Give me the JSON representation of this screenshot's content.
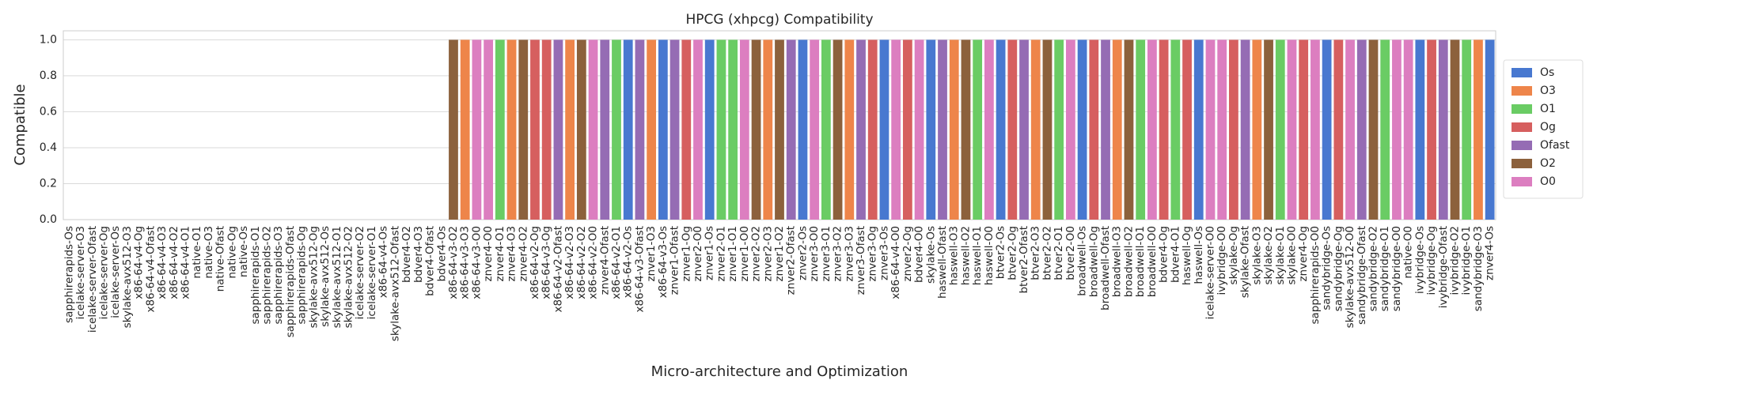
{
  "chart_data": {
    "type": "bar",
    "title": "HPCG (xhpcg) Compatibility",
    "xlabel": "Micro-architecture and Optimization",
    "ylabel": "Compatible",
    "categories": [
      "sapphirerapids-Os",
      "icelake-server-O3",
      "icelake-server-Ofast",
      "icelake-server-Og",
      "icelake-server-Os",
      "skylake-avx512-O3",
      "x86-64-v4-Og",
      "x86-64-v4-Ofast",
      "x86-64-v4-O3",
      "x86-64-v4-O2",
      "x86-64-v4-O1",
      "native-O1",
      "native-O3",
      "native-Ofast",
      "native-Og",
      "native-Os",
      "sapphirerapids-O1",
      "sapphirerapids-O2",
      "sapphirerapids-O3",
      "sapphirerapids-Ofast",
      "sapphirerapids-Og",
      "skylake-avx512-Og",
      "skylake-avx512-Os",
      "skylake-avx512-O1",
      "skylake-avx512-O2",
      "icelake-server-O2",
      "icelake-server-O1",
      "x86-64-v4-Os",
      "skylake-avx512-Ofast",
      "bdver4-O2",
      "bdver4-O3",
      "bdver4-Ofast",
      "bdver4-Os",
      "x86-64-v3-O2",
      "x86-64-v3-O3",
      "x86-64-v3-O0",
      "znver4-O0",
      "znver4-O1",
      "znver4-O3",
      "znver4-O2",
      "x86-64-v2-Og",
      "x86-64-v3-Og",
      "x86-64-v2-Ofast",
      "x86-64-v2-O3",
      "x86-64-v2-O2",
      "x86-64-v2-O0",
      "znver4-Ofast",
      "x86-64-v2-O1",
      "x86-64-v2-Os",
      "x86-64-v3-Ofast",
      "znver1-O3",
      "x86-64-v3-Os",
      "znver1-Ofast",
      "znver1-Og",
      "znver2-O0",
      "znver1-Os",
      "znver2-O1",
      "znver1-O1",
      "znver1-O0",
      "znver2-O2",
      "znver2-O3",
      "znver1-O2",
      "znver2-Ofast",
      "znver2-Os",
      "znver3-O0",
      "znver3-O1",
      "znver3-O2",
      "znver3-O3",
      "znver3-Ofast",
      "znver3-Og",
      "znver3-Os",
      "x86-64-v4-O0",
      "znver2-Og",
      "bdver4-O0",
      "skylake-Os",
      "haswell-Ofast",
      "haswell-O3",
      "haswell-O2",
      "haswell-O1",
      "haswell-O0",
      "btver2-Os",
      "btver2-Og",
      "btver2-Ofast",
      "btver2-O3",
      "btver2-O2",
      "btver2-O1",
      "btver2-O0",
      "broadwell-Os",
      "broadwell-Og",
      "broadwell-Ofast",
      "broadwell-O3",
      "broadwell-O2",
      "broadwell-O1",
      "broadwell-O0",
      "bdver4-Og",
      "bdver4-O1",
      "haswell-Og",
      "haswell-Os",
      "icelake-server-O0",
      "ivybridge-O0",
      "skylake-Og",
      "skylake-Ofast",
      "skylake-O3",
      "skylake-O2",
      "skylake-O1",
      "skylake-O0",
      "znver4-Og",
      "sapphirerapids-O0",
      "sandybridge-Os",
      "sandybridge-Og",
      "skylake-avx512-O0",
      "sandybridge-Ofast",
      "sandybridge-O2",
      "sandybridge-O1",
      "sandybridge-O0",
      "native-O0",
      "ivybridge-Os",
      "ivybridge-Og",
      "ivybridge-Ofast",
      "ivybridge-O2",
      "ivybridge-O1",
      "sandybridge-O3",
      "znver4-Os"
    ],
    "values": [
      0,
      0,
      0,
      0,
      0,
      0,
      0,
      0,
      0,
      0,
      0,
      0,
      0,
      0,
      0,
      0,
      0,
      0,
      0,
      0,
      0,
      0,
      0,
      0,
      0,
      0,
      0,
      0,
      0,
      0,
      0,
      0,
      0,
      1,
      1,
      1,
      1,
      1,
      1,
      1,
      1,
      1,
      1,
      1,
      1,
      1,
      1,
      1,
      1,
      1,
      1,
      1,
      1,
      1,
      1,
      1,
      1,
      1,
      1,
      1,
      1,
      1,
      1,
      1,
      1,
      1,
      1,
      1,
      1,
      1,
      1,
      1,
      1,
      1,
      1,
      1,
      1,
      1,
      1,
      1,
      1,
      1,
      1,
      1,
      1,
      1,
      1,
      1,
      1,
      1,
      1,
      1,
      1,
      1,
      1,
      1,
      1,
      1,
      1,
      1,
      1,
      1,
      1,
      1,
      1,
      1,
      1,
      1,
      1,
      1,
      1,
      1,
      1,
      1,
      1,
      1,
      1,
      1,
      1,
      1,
      1,
      1,
      1
    ],
    "series": [
      {
        "name": "Os",
        "color": "#4878d0"
      },
      {
        "name": "O3",
        "color": "#ee854a"
      },
      {
        "name": "O1",
        "color": "#6acc64"
      },
      {
        "name": "Og",
        "color": "#d65f5f"
      },
      {
        "name": "Ofast",
        "color": "#956cb4"
      },
      {
        "name": "O2",
        "color": "#8c613c"
      },
      {
        "name": "O0",
        "color": "#dc7ec0"
      }
    ],
    "ylim": [
      0,
      1.05
    ],
    "yticks": [
      {
        "value": 0,
        "label": "0.0"
      },
      {
        "value": 0.2,
        "label": "0.2"
      },
      {
        "value": 0.4,
        "label": "0.4"
      },
      {
        "value": 0.6,
        "label": "0.6"
      },
      {
        "value": 0.8,
        "label": "0.8"
      },
      {
        "value": 1,
        "label": "1.0"
      }
    ],
    "grid": true,
    "legend": "right"
  }
}
